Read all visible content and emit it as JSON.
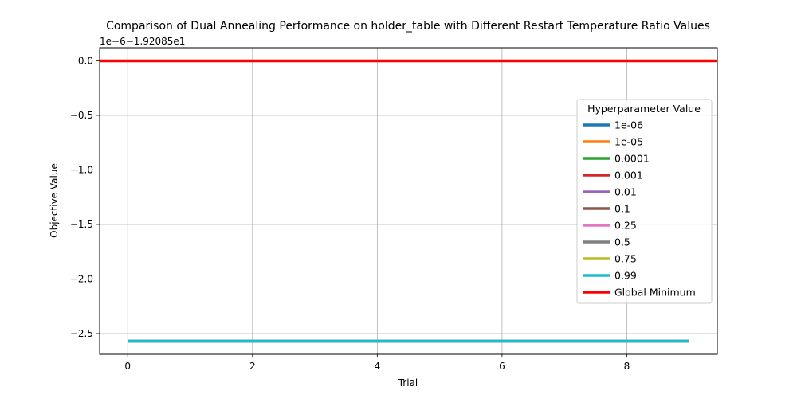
{
  "chart_data": {
    "type": "line",
    "title": "Comparison of Dual Annealing Performance on holder_table with Different Restart Temperature Ratio Values",
    "xlabel": "Trial",
    "ylabel": "Objective Value",
    "offset_text": "1e−6−1.92085e1",
    "xlim": [
      -0.45,
      9.45
    ],
    "ylim": [
      -2.69,
      0.12
    ],
    "x_ticks": [
      0,
      2,
      4,
      6,
      8
    ],
    "x_tick_labels": [
      "0",
      "2",
      "4",
      "6",
      "8"
    ],
    "y_ticks": [
      0.0,
      -0.5,
      -1.0,
      -1.5,
      -2.0,
      -2.5
    ],
    "y_tick_labels": [
      "0.0",
      "−0.5",
      "−1.0",
      "−1.5",
      "−2.0",
      "−2.5"
    ],
    "grid": true,
    "x": [
      0,
      1,
      2,
      3,
      4,
      5,
      6,
      7,
      8,
      9
    ],
    "legend": {
      "title": "Hyperparameter Value",
      "placement": "center-right"
    },
    "series": [
      {
        "name": "1e-06",
        "color": "#1f77b4",
        "values": [
          -2.57,
          -2.57,
          -2.57,
          -2.57,
          -2.57,
          -2.57,
          -2.57,
          -2.57,
          -2.57,
          -2.57
        ]
      },
      {
        "name": "1e-05",
        "color": "#ff7f0e",
        "values": [
          -2.57,
          -2.57,
          -2.57,
          -2.57,
          -2.57,
          -2.57,
          -2.57,
          -2.57,
          -2.57,
          -2.57
        ]
      },
      {
        "name": "0.0001",
        "color": "#2ca02c",
        "values": [
          -2.57,
          -2.57,
          -2.57,
          -2.57,
          -2.57,
          -2.57,
          -2.57,
          -2.57,
          -2.57,
          -2.57
        ]
      },
      {
        "name": "0.001",
        "color": "#d62728",
        "values": [
          -2.57,
          -2.57,
          -2.57,
          -2.57,
          -2.57,
          -2.57,
          -2.57,
          -2.57,
          -2.57,
          -2.57
        ]
      },
      {
        "name": "0.01",
        "color": "#9467bd",
        "values": [
          -2.57,
          -2.57,
          -2.57,
          -2.57,
          -2.57,
          -2.57,
          -2.57,
          -2.57,
          -2.57,
          -2.57
        ]
      },
      {
        "name": "0.1",
        "color": "#8c564b",
        "values": [
          -2.57,
          -2.57,
          -2.57,
          -2.57,
          -2.57,
          -2.57,
          -2.57,
          -2.57,
          -2.57,
          -2.57
        ]
      },
      {
        "name": "0.25",
        "color": "#e377c2",
        "values": [
          -2.57,
          -2.57,
          -2.57,
          -2.57,
          -2.57,
          -2.57,
          -2.57,
          -2.57,
          -2.57,
          -2.57
        ]
      },
      {
        "name": "0.5",
        "color": "#7f7f7f",
        "values": [
          -2.57,
          -2.57,
          -2.57,
          -2.57,
          -2.57,
          -2.57,
          -2.57,
          -2.57,
          -2.57,
          -2.57
        ]
      },
      {
        "name": "0.75",
        "color": "#bcbd22",
        "values": [
          -2.57,
          -2.57,
          -2.57,
          -2.57,
          -2.57,
          -2.57,
          -2.57,
          -2.57,
          -2.57,
          -2.57
        ]
      },
      {
        "name": "0.99",
        "color": "#17becf",
        "values": [
          -2.57,
          -2.57,
          -2.57,
          -2.57,
          -2.57,
          -2.57,
          -2.57,
          -2.57,
          -2.57,
          -2.57
        ]
      }
    ],
    "reference_line": {
      "name": "Global Minimum",
      "color": "#ff0000",
      "value": 0.0
    }
  }
}
